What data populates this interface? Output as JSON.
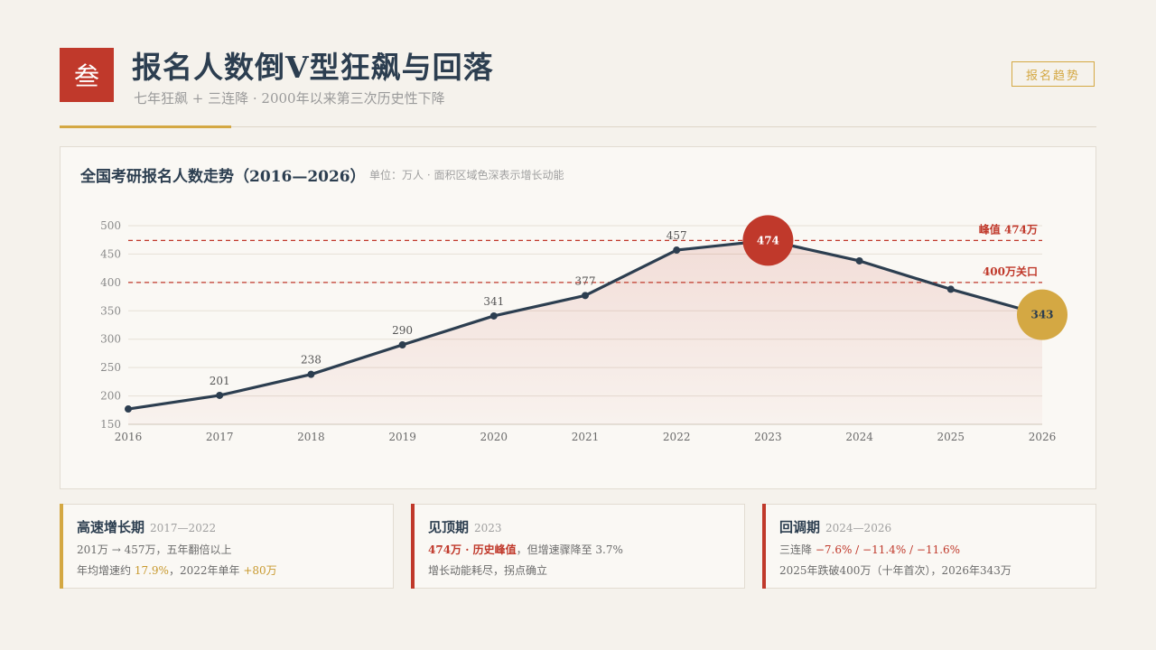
{
  "header": {
    "badge": "叁",
    "title": "报名人数倒V型狂飙与回落",
    "subtitle": "七年狂飙 + 三连降 · 2000年以来第三次历史性下降",
    "tag": "报名趋势"
  },
  "chart_header": {
    "title": "全国考研报名人数走势（2016—2026）",
    "unit_note": "单位：万人 · 面积区域色深表示增长动能"
  },
  "chart_data": {
    "type": "line",
    "title": "全国考研报名人数走势（2016—2026）",
    "x": [
      "2016",
      "2017",
      "2018",
      "2019",
      "2020",
      "2021",
      "2022",
      "2023",
      "2024",
      "2025",
      "2026"
    ],
    "series": [
      {
        "values": [
          177,
          201,
          238,
          290,
          341,
          377,
          457,
          474,
          438,
          388,
          343
        ]
      }
    ],
    "point_labels": [
      "",
      "201",
      "238",
      "290",
      "341",
      "377",
      "457",
      "474",
      "",
      "",
      "343"
    ],
    "highlight": {
      "peak_year": "2023",
      "peak_value": "474",
      "last_year": "2026",
      "last_value": "343"
    },
    "ylim": [
      150,
      500
    ],
    "yticks": [
      "150",
      "200",
      "250",
      "300",
      "350",
      "400",
      "450",
      "500"
    ],
    "reference_lines": [
      {
        "value": 474,
        "label": "峰值 474万"
      },
      {
        "value": 400,
        "label": "400万关口"
      }
    ],
    "grid": true,
    "colors": {
      "line": "#2c3e50",
      "peak": "#c0392b",
      "last": "#d4a843",
      "ref": "#c0392b",
      "area": "#c0392b"
    }
  },
  "phases": [
    {
      "title": "高速增长期",
      "period": "2017—2022",
      "line1": "201万 → 457万，五年翻倍以上",
      "line2_a": "年均增速约 ",
      "line2_b": "17.9%",
      "line2_c": "，2022年单年 ",
      "line2_d": "+80万",
      "color": "#d4a843"
    },
    {
      "title": "见顶期",
      "period": "2023",
      "line1_a": "474万 · 历史峰值",
      "line1_b": "，但增速骤降至 3.7%",
      "line2": "增长动能耗尽，拐点确立",
      "color": "#c0392b"
    },
    {
      "title": "回调期",
      "period": "2024—2026",
      "line1_a": "三连降 ",
      "line1_b": "−7.6% / −11.4% / −11.6%",
      "line2": "2025年跌破400万（十年首次），2026年343万",
      "color": "#c0392b"
    }
  ]
}
